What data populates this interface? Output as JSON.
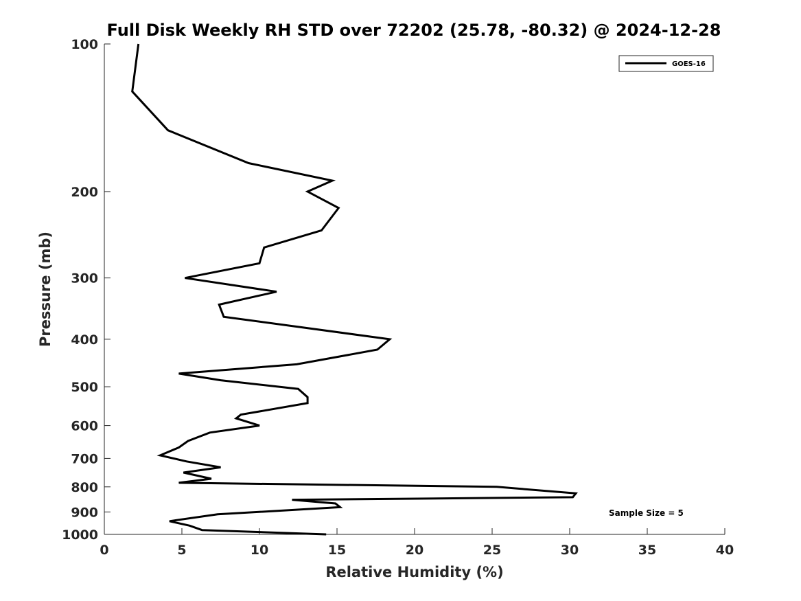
{
  "chart_data": {
    "type": "line",
    "title": "Full Disk Weekly RH STD over 72202 (25.78, -80.32) @ 2024-12-28",
    "xlabel": "Relative Humidity (%)",
    "ylabel": "Pressure (mb)",
    "xlim": [
      0,
      40
    ],
    "ylim": [
      100,
      1000
    ],
    "yscale": "log",
    "y_reversed": true,
    "x_ticks": [
      0,
      5,
      10,
      15,
      20,
      25,
      30,
      35,
      40
    ],
    "y_ticks": [
      100,
      200,
      300,
      400,
      500,
      600,
      700,
      800,
      900,
      1000
    ],
    "legend": {
      "location": "top-right",
      "entries": [
        "GOES-16"
      ]
    },
    "annotation": "Sample Size = 5",
    "series": [
      {
        "name": "GOES-16",
        "color": "#000000",
        "points": [
          [
            2.2,
            100
          ],
          [
            1.8,
            125
          ],
          [
            4.1,
            150
          ],
          [
            9.3,
            175
          ],
          [
            14.7,
            190
          ],
          [
            13.1,
            200
          ],
          [
            15.1,
            216
          ],
          [
            14.0,
            240
          ],
          [
            10.3,
            260
          ],
          [
            10.0,
            280
          ],
          [
            5.2,
            300
          ],
          [
            11.1,
            320
          ],
          [
            7.4,
            340
          ],
          [
            7.7,
            360
          ],
          [
            18.4,
            400
          ],
          [
            17.6,
            420
          ],
          [
            12.4,
            450
          ],
          [
            4.8,
            470
          ],
          [
            7.5,
            485
          ],
          [
            12.5,
            505
          ],
          [
            13.1,
            525
          ],
          [
            13.1,
            540
          ],
          [
            8.8,
            570
          ],
          [
            8.5,
            580
          ],
          [
            10.0,
            600
          ],
          [
            6.8,
            620
          ],
          [
            5.4,
            645
          ],
          [
            4.8,
            665
          ],
          [
            3.6,
            690
          ],
          [
            5.3,
            710
          ],
          [
            7.5,
            730
          ],
          [
            5.1,
            748
          ],
          [
            6.9,
            770
          ],
          [
            4.8,
            785
          ],
          [
            25.3,
            800
          ],
          [
            30.4,
            825
          ],
          [
            30.2,
            840
          ],
          [
            12.1,
            850
          ],
          [
            14.9,
            865
          ],
          [
            15.2,
            880
          ],
          [
            7.3,
            910
          ],
          [
            4.2,
            940
          ],
          [
            5.5,
            960
          ],
          [
            6.3,
            980
          ],
          [
            14.3,
            1000
          ]
        ]
      }
    ]
  }
}
